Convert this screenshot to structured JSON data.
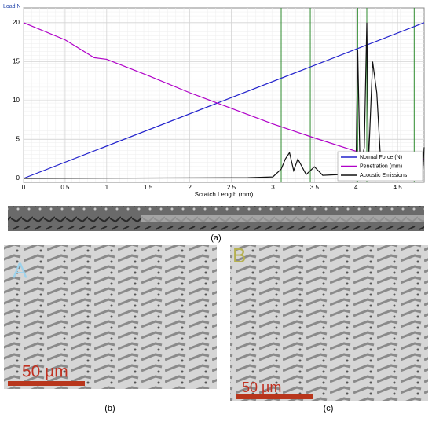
{
  "chart_data": {
    "type": "line",
    "ylabel": "Load,N",
    "xlabel": "Scratch Length (mm)",
    "xlim": [
      0,
      4.82
    ],
    "ylim": [
      -0.5,
      21.9
    ],
    "xticks": [
      0,
      0.5,
      1,
      1.5,
      2,
      2.5,
      3,
      3.5,
      4,
      4.5
    ],
    "yticks": [
      0,
      5,
      10,
      15,
      20
    ],
    "grid": true,
    "legend": "lower right",
    "markers": [
      3.1,
      3.45,
      4.02,
      4.13,
      4.7
    ],
    "marker_color": "#2e8b2e",
    "series": [
      {
        "name": "Normal Force (N)",
        "color": "#2222cc",
        "x": [
          0,
          4.82
        ],
        "values": [
          0,
          20
        ]
      },
      {
        "name": "Penetration (mm)",
        "color": "#b000c8",
        "x": [
          0,
          0.5,
          0.85,
          1,
          1.5,
          2,
          2.5,
          3,
          3.5,
          4,
          4.2,
          4.3,
          4.5,
          4.82
        ],
        "values": [
          20,
          17.8,
          15.5,
          15.3,
          13.2,
          11,
          9,
          7,
          5.2,
          3.5,
          2.8,
          2.4,
          2.2,
          2.5
        ]
      },
      {
        "name": "Acoustic Emissions",
        "color": "#111111",
        "x": [
          0,
          2.7,
          3.0,
          3.1,
          3.15,
          3.2,
          3.25,
          3.3,
          3.4,
          3.5,
          3.6,
          3.8,
          4.0,
          4.02,
          4.05,
          4.1,
          4.13,
          4.15,
          4.2,
          4.25,
          4.3,
          4.4,
          4.6,
          4.8,
          4.82
        ],
        "values": [
          0,
          0.1,
          0.2,
          1.2,
          2.5,
          3.3,
          1,
          2.5,
          0.5,
          1.5,
          0.4,
          0.5,
          0.5,
          16.5,
          1,
          4,
          20,
          2,
          15,
          11,
          1.5,
          2,
          0.3,
          0.3,
          4
        ]
      }
    ]
  },
  "figure": {
    "panel_a": "(a)",
    "panel_b": "(b)",
    "panel_c": "(c)",
    "image_b_letter": "A",
    "image_c_letter": "B",
    "scale_b": "50 µm",
    "scale_c": "50 µm"
  }
}
